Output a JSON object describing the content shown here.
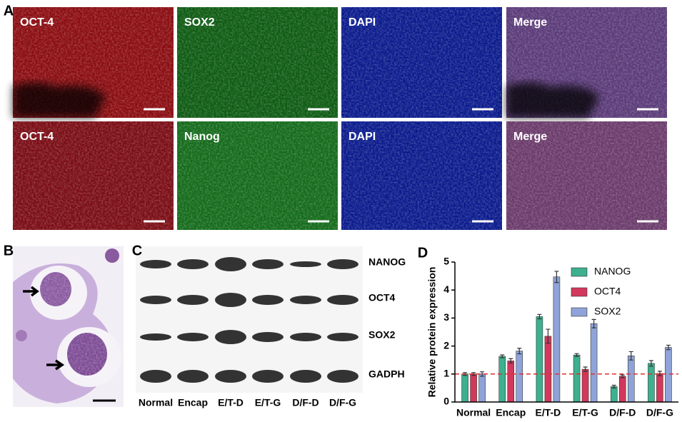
{
  "panel_labels": [
    "A",
    "B",
    "C",
    "D"
  ],
  "panel_a": {
    "row1": [
      "OCT-4",
      "SOX2",
      "DAPI",
      "Merge"
    ],
    "row2": [
      "OCT-4",
      "Nanog",
      "DAPI",
      "Merge"
    ]
  },
  "panel_c": {
    "proteins": [
      "NANOG",
      "OCT4",
      "SOX2",
      "GADPH"
    ],
    "lanes": [
      "Normal",
      "Encap",
      "E/T-D",
      "E/T-G",
      "D/F-D",
      "D/F-G"
    ]
  },
  "chart_data": {
    "type": "bar",
    "ylabel": "Relative protein expression",
    "categories": [
      "Normal",
      "Encap",
      "E/T-D",
      "E/T-G",
      "D/F-D",
      "D/F-G"
    ],
    "series": [
      {
        "name": "NANOG",
        "color": "#3db08f",
        "values": [
          1,
          1.63,
          3.05,
          1.68,
          0.55,
          1.38
        ],
        "errors": [
          0.05,
          0.05,
          0.08,
          0.05,
          0.05,
          0.1
        ]
      },
      {
        "name": "OCT4",
        "color": "#d2385c",
        "values": [
          1,
          1.47,
          2.35,
          1.17,
          0.92,
          1.02
        ],
        "errors": [
          0.05,
          0.08,
          0.25,
          0.08,
          0.05,
          0.08
        ]
      },
      {
        "name": "SOX2",
        "color": "#8fa3d8",
        "values": [
          1,
          1.82,
          4.47,
          2.8,
          1.65,
          1.95
        ],
        "errors": [
          0.08,
          0.1,
          0.2,
          0.15,
          0.15,
          0.08
        ]
      }
    ],
    "ylim": [
      0,
      5
    ],
    "yticks": [
      0,
      1,
      2,
      3,
      4,
      5
    ],
    "reference_line": 1,
    "legend": "top-right"
  }
}
